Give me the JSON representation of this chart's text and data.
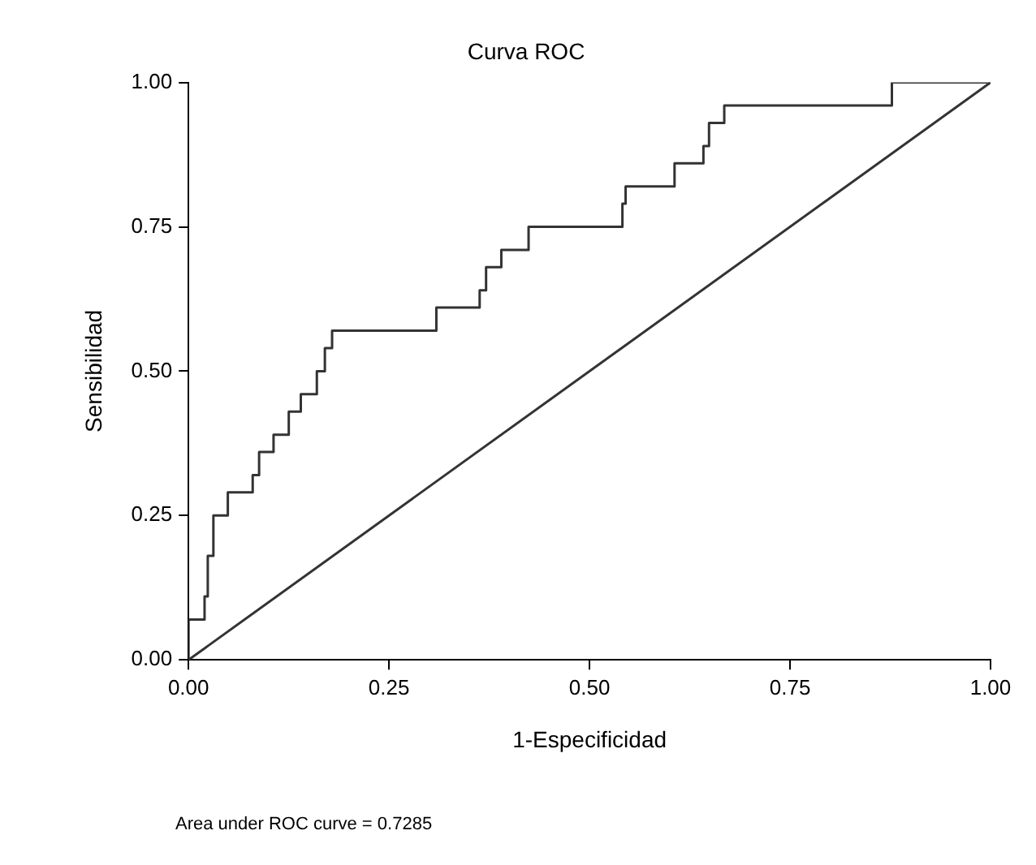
{
  "chart_data": {
    "type": "line",
    "title": "Curva ROC",
    "xlabel": "1-Especificidad",
    "ylabel": "Sensibilidad",
    "annotations": [
      "Area under ROC curve = 0.7285"
    ],
    "xlim": [
      0,
      1
    ],
    "ylim": [
      0,
      1
    ],
    "xticks": [
      {
        "value": 0,
        "label": "0.00"
      },
      0.25,
      {
        "value": 0.5,
        "label": "0.50"
      },
      0.75,
      {
        "value": 1,
        "label": "1.00"
      }
    ],
    "yticks": [
      {
        "value": 0,
        "label": "0.00"
      },
      0.25,
      {
        "value": 0.5,
        "label": "0.50"
      },
      0.75,
      {
        "value": 1,
        "label": "1.00"
      }
    ],
    "grid": false,
    "legend": false,
    "marker": "none",
    "line_style": "solid",
    "series": [
      {
        "color": "#333333",
        "x": [
          0,
          0,
          0.02,
          0.02,
          0.024,
          0.024,
          0.031,
          0.031,
          0.049,
          0.049,
          0.08,
          0.08,
          0.088,
          0.088,
          0.106,
          0.106,
          0.125,
          0.125,
          0.14,
          0.14,
          0.16,
          0.16,
          0.17,
          0.17,
          0.179,
          0.179,
          0.309,
          0.309,
          0.363,
          0.363,
          0.371,
          0.371,
          0.39,
          0.39,
          0.424,
          0.424,
          0.541,
          0.541,
          0.545,
          0.545,
          0.606,
          0.606,
          0.642,
          0.642,
          0.649,
          0.649,
          0.668,
          0.668,
          0.877,
          0.877,
          1
        ],
        "values": [
          0,
          0.07,
          0.07,
          0.11,
          0.11,
          0.18,
          0.18,
          0.25,
          0.25,
          0.29,
          0.29,
          0.32,
          0.32,
          0.36,
          0.36,
          0.39,
          0.39,
          0.43,
          0.43,
          0.46,
          0.46,
          0.5,
          0.5,
          0.54,
          0.54,
          0.57,
          0.57,
          0.61,
          0.61,
          0.64,
          0.64,
          0.68,
          0.68,
          0.71,
          0.71,
          0.75,
          0.75,
          0.79,
          0.79,
          0.82,
          0.82,
          0.86,
          0.86,
          0.89,
          0.89,
          0.93,
          0.93,
          0.96,
          0.96,
          1,
          1
        ]
      },
      {
        "color": "#333333",
        "x": [
          0,
          1
        ],
        "values": [
          0,
          1
        ]
      }
    ]
  }
}
